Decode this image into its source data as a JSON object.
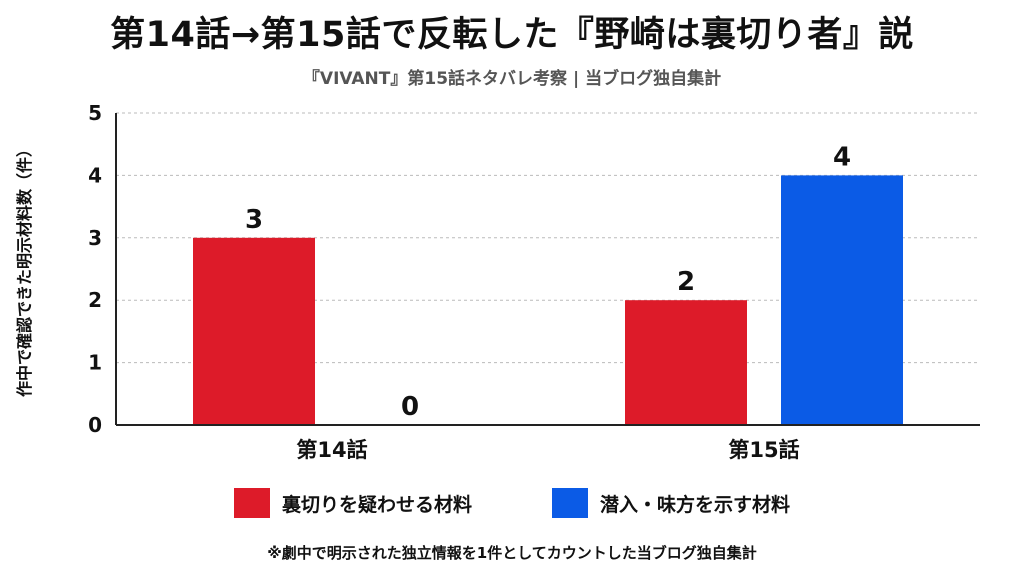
{
  "header": {
    "title": "第14話→第15話で反転した『野崎は裏切り者』説",
    "subtitle": "『VIVANT』第15話ネタバレ考察 | 当ブログ独自集計"
  },
  "footnote": "※劇中で明示された独立情報を1件としてカウントした当ブログ独自集計",
  "colors": {
    "betrayal": "#dd1b29",
    "ally": "#0b5be6",
    "axis": "#222222",
    "grid": "#bbbbbb"
  },
  "chart_data": {
    "type": "bar",
    "ylabel": "作中で確認できた明示材料数（件）",
    "xlabel": "",
    "categories": [
      "第14話",
      "第15話"
    ],
    "ylim": [
      0,
      5
    ],
    "yticks": [
      0,
      1,
      2,
      3,
      4,
      5
    ],
    "grid": true,
    "legend_position": "bottom",
    "series": [
      {
        "name": "裏切りを疑わせる材料",
        "color": "#dd1b29",
        "values": [
          3,
          2
        ]
      },
      {
        "name": "潜入・味方を示す材料",
        "color": "#0b5be6",
        "values": [
          0,
          4
        ]
      }
    ],
    "data_labels": true
  }
}
